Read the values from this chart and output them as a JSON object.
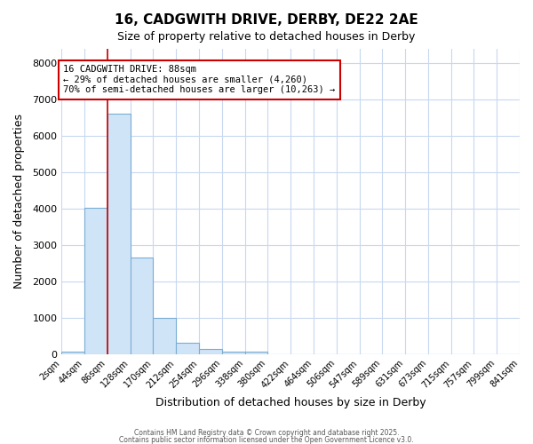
{
  "title1": "16, CADGWITH DRIVE, DERBY, DE22 2AE",
  "title2": "Size of property relative to detached houses in Derby",
  "xlabel": "Distribution of detached houses by size in Derby",
  "ylabel": "Number of detached properties",
  "bar_values": [
    75,
    4020,
    6620,
    2650,
    1000,
    320,
    130,
    80,
    80,
    0,
    0,
    0,
    0,
    0,
    0,
    0,
    0,
    0,
    0,
    0
  ],
  "bin_edges": [
    2,
    44,
    86,
    128,
    170,
    212,
    254,
    296,
    338,
    380,
    422,
    464,
    506,
    548,
    590,
    632,
    674,
    716,
    758,
    800,
    842
  ],
  "xtick_labels": [
    "2sqm",
    "44sqm",
    "86sqm",
    "128sqm",
    "170sqm",
    "212sqm",
    "254sqm",
    "296sqm",
    "338sqm",
    "380sqm",
    "422sqm",
    "464sqm",
    "506sqm",
    "547sqm",
    "589sqm",
    "631sqm",
    "673sqm",
    "715sqm",
    "757sqm",
    "799sqm",
    "841sqm"
  ],
  "bar_color": "#d0e4f7",
  "bar_edge_color": "#7aadd4",
  "property_line_x": 86,
  "property_line_color": "#cc0000",
  "annotation_text": "16 CADGWITH DRIVE: 88sqm\n← 29% of detached houses are smaller (4,260)\n70% of semi-detached houses are larger (10,263) →",
  "annotation_box_color": "#cc0000",
  "ylim": [
    0,
    8400
  ],
  "yticks": [
    0,
    1000,
    2000,
    3000,
    4000,
    5000,
    6000,
    7000,
    8000
  ],
  "bg_color": "#ffffff",
  "grid_color": "#c8d8f0",
  "footer1": "Contains HM Land Registry data © Crown copyright and database right 2025.",
  "footer2": "Contains public sector information licensed under the Open Government Licence v3.0."
}
